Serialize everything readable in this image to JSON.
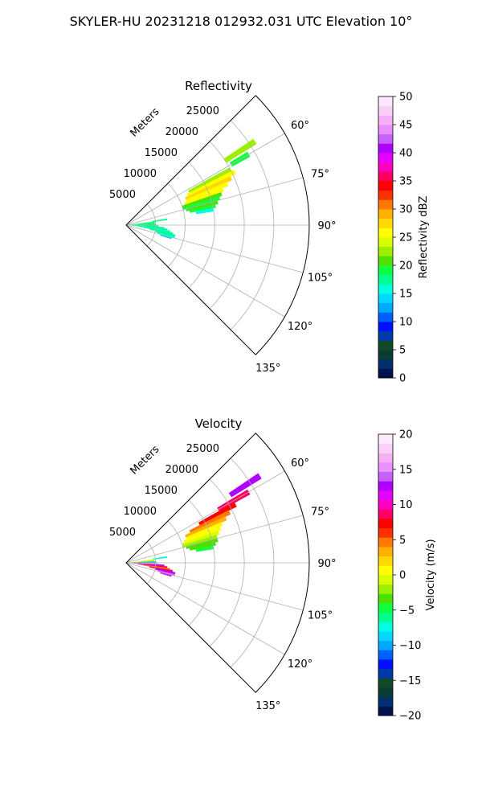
{
  "figure": {
    "title": "SKYLER-HU  20231218  012932.031 UTC Elevation 10°"
  },
  "chart_data": [
    {
      "type": "heatmap",
      "projection": "polar-sector",
      "title": "Reflectivity",
      "range_label": "Meters",
      "range_ticks": [
        5000,
        10000,
        15000,
        20000,
        25000
      ],
      "range_max": 31000,
      "azimuth_range": [
        45,
        135
      ],
      "azimuth_ticks": [
        60,
        75,
        90,
        105,
        120,
        135
      ],
      "grid": true,
      "colorbar": {
        "label": "Reflectivity dBZ",
        "vmin": 0,
        "vmax": 50,
        "ticks": [
          0,
          5,
          10,
          15,
          20,
          25,
          30,
          35,
          40,
          45,
          50
        ],
        "colors": [
          "#001250",
          "#003070",
          "#0a3c30",
          "#114a2a",
          "#003aa8",
          "#0010ff",
          "#0060ff",
          "#00a8ff",
          "#00d8ff",
          "#00ffe0",
          "#00ff90",
          "#10ff40",
          "#50e000",
          "#9af000",
          "#d8ff00",
          "#ffff00",
          "#ffd800",
          "#ffb000",
          "#ff7800",
          "#ff3000",
          "#ff0000",
          "#ff0060",
          "#ff00c0",
          "#e600ff",
          "#b000ff",
          "#c860ff",
          "#e890ff",
          "#f5b0f5",
          "#f8d0f8",
          "#fde8fd"
        ]
      },
      "cells": [
        {
          "az": 57,
          "r0": 20000,
          "r1": 26000,
          "value": 22
        },
        {
          "az": 60,
          "r0": 20500,
          "r1": 24000,
          "value": 19
        },
        {
          "az": 62,
          "r0": 12000,
          "r1": 20000,
          "value": 23
        },
        {
          "az": 64,
          "r0": 11500,
          "r1": 20500,
          "value": 26
        },
        {
          "az": 66,
          "r0": 11000,
          "r1": 19500,
          "value": 27
        },
        {
          "az": 68,
          "r0": 11000,
          "r1": 18500,
          "value": 26
        },
        {
          "az": 70,
          "r0": 10500,
          "r1": 17500,
          "value": 25
        },
        {
          "az": 72,
          "r0": 10000,
          "r1": 17000,
          "value": 21
        },
        {
          "az": 74,
          "r0": 10000,
          "r1": 16500,
          "value": 19
        },
        {
          "az": 76,
          "r0": 10500,
          "r1": 16000,
          "value": 20
        },
        {
          "az": 78,
          "r0": 11000,
          "r1": 15500,
          "value": 19
        },
        {
          "az": 80,
          "r0": 12000,
          "r1": 15000,
          "value": 16
        },
        {
          "az": 82,
          "r0": 4500,
          "r1": 7000,
          "value": 17
        },
        {
          "az": 84,
          "r0": 0,
          "r1": 5000,
          "value": 18
        },
        {
          "az": 86,
          "r0": 0,
          "r1": 4800,
          "value": 17
        },
        {
          "az": 88,
          "r0": 0,
          "r1": 5000,
          "value": 19
        },
        {
          "az": 90,
          "r0": 0,
          "r1": 5200,
          "value": 18
        },
        {
          "az": 92,
          "r0": 0,
          "r1": 5500,
          "value": 17
        },
        {
          "az": 94,
          "r0": 1000,
          "r1": 6500,
          "value": 18
        },
        {
          "az": 96,
          "r0": 2000,
          "r1": 7000,
          "value": 17
        },
        {
          "az": 98,
          "r0": 3000,
          "r1": 7500,
          "value": 16
        },
        {
          "az": 100,
          "r0": 4000,
          "r1": 8000,
          "value": 17
        },
        {
          "az": 102,
          "r0": 5000,
          "r1": 8500,
          "value": 18
        },
        {
          "az": 104,
          "r0": 5500,
          "r1": 8500,
          "value": 16
        },
        {
          "az": 106,
          "r0": 6000,
          "r1": 8000,
          "value": 14
        }
      ]
    },
    {
      "type": "heatmap",
      "projection": "polar-sector",
      "title": "Velocity",
      "range_label": "Meters",
      "range_ticks": [
        5000,
        10000,
        15000,
        20000,
        25000
      ],
      "range_max": 31000,
      "azimuth_range": [
        45,
        135
      ],
      "azimuth_ticks": [
        60,
        75,
        90,
        105,
        120,
        135
      ],
      "grid": true,
      "colorbar": {
        "label": "Velocity (m/s)",
        "vmin": -20,
        "vmax": 20,
        "ticks": [
          -20,
          -15,
          -10,
          -5,
          0,
          5,
          10,
          15,
          20
        ],
        "colors": [
          "#001250",
          "#003070",
          "#0a3c30",
          "#114a2a",
          "#003aa8",
          "#0010ff",
          "#0060ff",
          "#00a8ff",
          "#00d8ff",
          "#00ffe0",
          "#00ff90",
          "#10ff40",
          "#50e000",
          "#9af000",
          "#d8ff00",
          "#ffff00",
          "#ffd800",
          "#ffb000",
          "#ff7800",
          "#ff3000",
          "#ff0000",
          "#ff0060",
          "#ff00c0",
          "#e600ff",
          "#b000ff",
          "#c860ff",
          "#e890ff",
          "#f5b0f5",
          "#f8d0f8",
          "#fde8fd"
        ]
      },
      "cells": [
        {
          "az": 57,
          "r0": 21000,
          "r1": 27000,
          "value": 13
        },
        {
          "az": 60,
          "r0": 18000,
          "r1": 24000,
          "value": 9
        },
        {
          "az": 62,
          "r0": 14000,
          "r1": 21000,
          "value": 7
        },
        {
          "az": 64,
          "r0": 12000,
          "r1": 19500,
          "value": 5
        },
        {
          "az": 66,
          "r0": 11000,
          "r1": 18500,
          "value": 3
        },
        {
          "az": 68,
          "r0": 11000,
          "r1": 17500,
          "value": 1
        },
        {
          "az": 70,
          "r0": 10500,
          "r1": 17000,
          "value": 0
        },
        {
          "az": 72,
          "r0": 10000,
          "r1": 16500,
          "value": -1
        },
        {
          "az": 74,
          "r0": 10000,
          "r1": 16000,
          "value": -2
        },
        {
          "az": 76,
          "r0": 10500,
          "r1": 16000,
          "value": -3
        },
        {
          "az": 78,
          "r0": 11000,
          "r1": 15500,
          "value": -4
        },
        {
          "az": 80,
          "r0": 12000,
          "r1": 15000,
          "value": -5
        },
        {
          "az": 82,
          "r0": 4500,
          "r1": 7000,
          "value": -7
        },
        {
          "az": 84,
          "r0": 0,
          "r1": 5000,
          "value": 1
        },
        {
          "az": 86,
          "r0": 0,
          "r1": 4800,
          "value": -2
        },
        {
          "az": 88,
          "r0": 0,
          "r1": 5000,
          "value": -9
        },
        {
          "az": 90,
          "r0": 0,
          "r1": 5200,
          "value": -11
        },
        {
          "az": 92,
          "r0": 0,
          "r1": 5500,
          "value": 16
        },
        {
          "az": 94,
          "r0": 1000,
          "r1": 6500,
          "value": 12
        },
        {
          "az": 96,
          "r0": 2000,
          "r1": 7000,
          "value": 8
        },
        {
          "az": 98,
          "r0": 3000,
          "r1": 7500,
          "value": 5
        },
        {
          "az": 100,
          "r0": 4000,
          "r1": 8000,
          "value": 9
        },
        {
          "az": 102,
          "r0": 5000,
          "r1": 8500,
          "value": 12
        },
        {
          "az": 104,
          "r0": 5500,
          "r1": 8500,
          "value": 14
        },
        {
          "az": 106,
          "r0": 6000,
          "r1": 8000,
          "value": 11
        }
      ]
    }
  ]
}
